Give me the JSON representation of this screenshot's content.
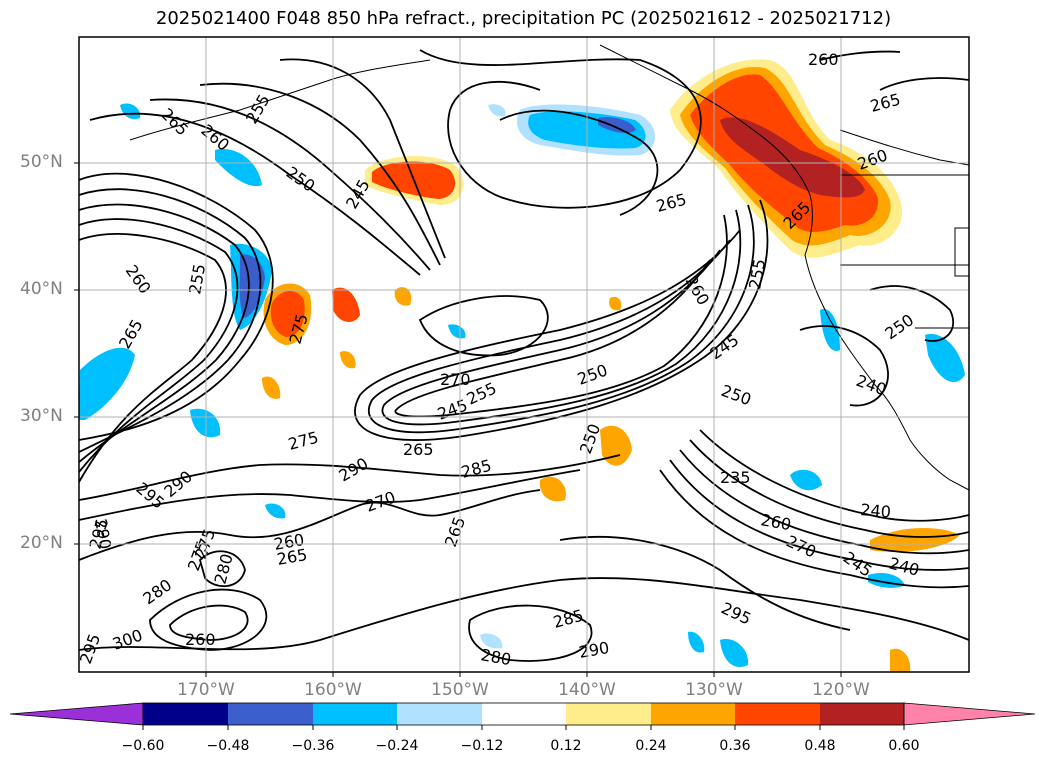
{
  "title": "2025021400 F048 850 hPa refract., precipitation PC (2025021612 - 2025021712)",
  "lat_labels": [
    "50°N",
    "40°N",
    "30°N",
    "20°N"
  ],
  "lon_labels": [
    "170°W",
    "160°W",
    "150°W",
    "140°W",
    "130°W",
    "120°W"
  ],
  "colorbar": {
    "ticks": [
      "−0.60",
      "−0.48",
      "−0.36",
      "−0.24",
      "−0.12",
      "0.12",
      "0.24",
      "0.36",
      "0.48",
      "0.60"
    ],
    "colors": [
      "#9b30d9",
      "#00008b",
      "#3a5fcd",
      "#00bfff",
      "#b0e2ff",
      "#ffffff",
      "#ffec8b",
      "#ffa500",
      "#ff4500",
      "#b22222",
      "#ff82ab"
    ]
  },
  "contour_labels": [
    "265",
    "260",
    "255",
    "250",
    "245",
    "260",
    "255",
    "265",
    "275",
    "260",
    "265",
    "270",
    "255",
    "245",
    "250",
    "265",
    "275",
    "290",
    "295",
    "290",
    "285",
    "270",
    "265",
    "280",
    "275",
    "260",
    "265",
    "290",
    "295",
    "280",
    "275",
    "300",
    "295",
    "260",
    "260",
    "265",
    "260",
    "265",
    "250",
    "250",
    "240",
    "245",
    "240",
    "235",
    "260",
    "270",
    "245",
    "240",
    "295",
    "285",
    "290",
    "280",
    "255",
    "250"
  ],
  "icons": {
    "colorbar_left_extension": "triangle-arrow-left",
    "colorbar_right_extension": "triangle-arrow-right"
  }
}
